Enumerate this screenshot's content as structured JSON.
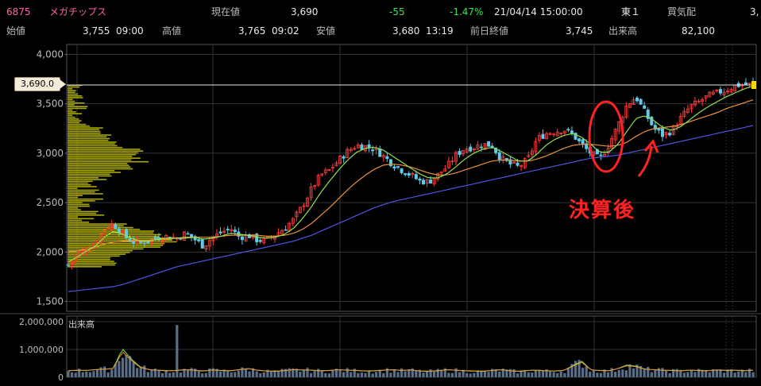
{
  "quote": {
    "code": "6875",
    "name": "メガチップス",
    "current_label": "現在値",
    "current": "3,690",
    "change": "-55",
    "change_pct": "-1.47%",
    "datetime": "21/04/14  15:00:00",
    "market": "東１",
    "balance_label": "買気配",
    "balance": "3,",
    "open_label": "始値",
    "open": "3,755",
    "open_time": "09:00",
    "high_label": "高値",
    "high": "3,765",
    "high_time": "09:02",
    "low_label": "安値",
    "low": "3,680",
    "low_time": "13:19",
    "prev_label": "前日終値",
    "prev": "3,745",
    "volume_label": "出来高",
    "volume": "82,100"
  },
  "current_price_tag": "3,690.0",
  "annotation": "決算後",
  "volume_panel_label": "出来高",
  "colors": {
    "up": "#ff3b3b",
    "down": "#5fcaea",
    "ma_short": "#8ee050",
    "ma_mid": "#e8913a",
    "ma_long": "#4f56e0",
    "profile": "#a8a800",
    "grid": "#33333a",
    "annotation": "#ff2222"
  },
  "chart_data": {
    "type": "candlestick",
    "price_axis": {
      "ticks": [
        "4,000",
        "3,500",
        "3,000",
        "2,500",
        "2,000",
        "1,500"
      ],
      "ylim": [
        1400,
        4100
      ]
    },
    "volume_axis": {
      "ticks": [
        "2,000,000",
        "1,000,000",
        "0"
      ],
      "ylim": [
        0,
        2200000
      ]
    },
    "current_price": 3690,
    "close_path": [
      1870,
      1980,
      2030,
      2100,
      2230,
      2290,
      2180,
      2110,
      2090,
      2120,
      2150,
      2160,
      2140,
      2190,
      2130,
      2060,
      2150,
      2200,
      2240,
      2150,
      2170,
      2120,
      2120,
      2180,
      2240,
      2330,
      2470,
      2640,
      2780,
      2830,
      2930,
      3020,
      3080,
      3070,
      3040,
      2970,
      2890,
      2830,
      2780,
      2720,
      2710,
      2780,
      2860,
      2980,
      3050,
      3060,
      3090,
      3080,
      2950,
      2890,
      2860,
      2940,
      3140,
      3200,
      3220,
      3240,
      3190,
      3080,
      3000,
      2940,
      3090,
      3280,
      3490,
      3570,
      3410,
      3250,
      3180,
      3230,
      3360,
      3470,
      3520,
      3580,
      3610,
      3640,
      3680,
      3700,
      3690
    ],
    "ma_short_path": [
      1900,
      1950,
      2010,
      2060,
      2150,
      2210,
      2180,
      2140,
      2110,
      2110,
      2130,
      2140,
      2140,
      2150,
      2150,
      2130,
      2140,
      2160,
      2190,
      2180,
      2170,
      2150,
      2140,
      2150,
      2180,
      2240,
      2340,
      2460,
      2600,
      2720,
      2830,
      2930,
      3010,
      3050,
      3060,
      3030,
      2970,
      2910,
      2850,
      2790,
      2750,
      2750,
      2790,
      2860,
      2940,
      3000,
      3040,
      3060,
      3020,
      2970,
      2920,
      2920,
      2990,
      3080,
      3140,
      3180,
      3200,
      3160,
      3090,
      3010,
      3010,
      3090,
      3220,
      3350,
      3380,
      3330,
      3260,
      3230,
      3270,
      3340,
      3410,
      3470,
      3520,
      3570,
      3610,
      3650,
      3680
    ],
    "ma_mid_path": [
      2000,
      2010,
      2030,
      2050,
      2080,
      2100,
      2110,
      2110,
      2120,
      2120,
      2130,
      2130,
      2140,
      2140,
      2150,
      2150,
      2150,
      2160,
      2170,
      2170,
      2170,
      2170,
      2160,
      2160,
      2170,
      2190,
      2230,
      2290,
      2370,
      2450,
      2540,
      2630,
      2710,
      2780,
      2840,
      2880,
      2890,
      2880,
      2860,
      2830,
      2800,
      2780,
      2780,
      2800,
      2830,
      2860,
      2890,
      2920,
      2930,
      2930,
      2920,
      2920,
      2940,
      2970,
      3010,
      3050,
      3080,
      3090,
      3090,
      3080,
      3070,
      3080,
      3110,
      3170,
      3220,
      3250,
      3260,
      3270,
      3290,
      3320,
      3350,
      3380,
      3410,
      3450,
      3480,
      3510,
      3540
    ],
    "ma_long_path": [
      1600,
      1610,
      1620,
      1630,
      1640,
      1650,
      1670,
      1700,
      1730,
      1760,
      1790,
      1820,
      1850,
      1870,
      1890,
      1910,
      1930,
      1950,
      1970,
      1990,
      2010,
      2030,
      2050,
      2070,
      2090,
      2110,
      2140,
      2170,
      2210,
      2250,
      2290,
      2330,
      2370,
      2410,
      2450,
      2480,
      2510,
      2530,
      2550,
      2570,
      2590,
      2610,
      2630,
      2650,
      2670,
      2690,
      2710,
      2730,
      2750,
      2770,
      2790,
      2810,
      2830,
      2850,
      2870,
      2890,
      2910,
      2930,
      2950,
      2960,
      2970,
      2980,
      3000,
      3020,
      3040,
      3060,
      3080,
      3100,
      3120,
      3140,
      3160,
      3180,
      3200,
      3220,
      3240,
      3260,
      3280
    ],
    "volume_path": [
      220000,
      240000,
      230000,
      260000,
      280000,
      300000,
      980000,
      620000,
      350000,
      260000,
      240000,
      220000,
      230000,
      260000,
      240000,
      210000,
      250000,
      230000,
      220000,
      260000,
      300000,
      240000,
      210000,
      200000,
      230000,
      260000,
      250000,
      240000,
      220000,
      230000,
      260000,
      240000,
      230000,
      210000,
      220000,
      240000,
      260000,
      230000,
      250000,
      210000,
      200000,
      220000,
      260000,
      240000,
      220000,
      210000,
      200000,
      230000,
      260000,
      220000,
      200000,
      230000,
      240000,
      220000,
      210000,
      230000,
      400000,
      550000,
      250000,
      230000,
      220000,
      300000,
      420000,
      380000,
      280000,
      260000,
      240000,
      230000,
      220000,
      240000,
      230000,
      220000,
      250000,
      230000,
      240000,
      220000,
      240000
    ],
    "volume_spike": 1880000
  }
}
